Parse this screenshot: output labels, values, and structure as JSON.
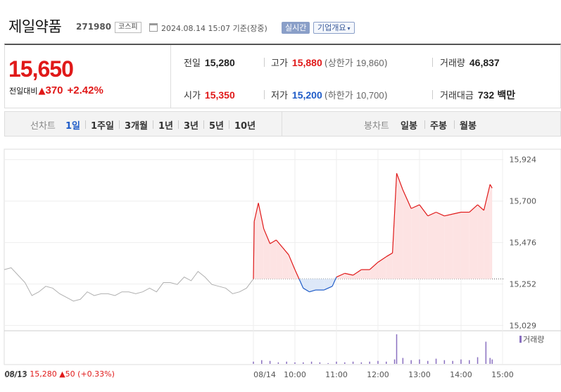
{
  "header": {
    "name": "제일약품",
    "code": "271980",
    "market": "코스피",
    "as_of": "2024.08.14 15:07 기준(장중)",
    "realtime": "실시간",
    "overview": "기업개요",
    "overview_caret": "▾"
  },
  "summary": {
    "price": "15,650",
    "change_label": "전일대비",
    "up_symbol": "▲",
    "change": "370",
    "change_pct": "+2.42%",
    "prev_label": "전일",
    "prev": "15,280",
    "high_label": "고가",
    "high": "15,880",
    "upper_limit_label": "(상한가",
    "upper_limit": "19,860",
    "upper_close": ")",
    "volume_label": "거래량",
    "volume": "46,837",
    "open_label": "시가",
    "open": "15,350",
    "low_label": "저가",
    "low": "15,200",
    "lower_limit_label": "(하한가",
    "lower_limit": "10,700",
    "lower_close": ")",
    "amount_label": "거래대금",
    "amount": "732",
    "amount_unit": "백만"
  },
  "tabs": {
    "line_label": "선차트",
    "line_periods": [
      "1일",
      "1주일",
      "3개월",
      "1년",
      "3년",
      "5년",
      "10년"
    ],
    "active": "1일",
    "candle_label": "봉차트",
    "candle_periods": [
      "일봉",
      "주봉",
      "월봉"
    ]
  },
  "prev_day_info": {
    "date": "08/13",
    "close": "15,280",
    "up_symbol": "▲",
    "change": "50",
    "pct": "(+0.33%)"
  },
  "colors": {
    "up": "#e01919",
    "down": "#1f5cc8",
    "fill_up": "#fde3e3",
    "fill_down": "#dde8f8",
    "prev_line": "#b0b0b0",
    "volume": "#8a70c0"
  },
  "chart_data": {
    "type": "line",
    "title": "",
    "xlabel": "",
    "ylabel": "",
    "baseline": 15280,
    "y_ticks": [
      15924,
      15700,
      15476,
      15252,
      15029
    ],
    "ylim": [
      15000,
      15980
    ],
    "x_ticks": [
      "08/14",
      "10:00",
      "11:00",
      "12:00",
      "13:00",
      "14:00",
      "15:00"
    ],
    "previous_day": {
      "date": "08/13",
      "points": [
        [
          0,
          15330
        ],
        [
          0.2,
          15340
        ],
        [
          0.4,
          15300
        ],
        [
          0.6,
          15260
        ],
        [
          0.8,
          15190
        ],
        [
          1,
          15210
        ],
        [
          1.2,
          15240
        ],
        [
          1.4,
          15230
        ],
        [
          1.6,
          15200
        ],
        [
          1.8,
          15180
        ],
        [
          2,
          15160
        ],
        [
          2.2,
          15170
        ],
        [
          2.4,
          15210
        ],
        [
          2.6,
          15190
        ],
        [
          2.8,
          15200
        ],
        [
          3,
          15200
        ],
        [
          3.2,
          15190
        ],
        [
          3.4,
          15210
        ],
        [
          3.6,
          15210
        ],
        [
          3.8,
          15200
        ],
        [
          4,
          15210
        ],
        [
          4.2,
          15230
        ],
        [
          4.4,
          15210
        ],
        [
          4.6,
          15260
        ],
        [
          4.8,
          15260
        ],
        [
          5,
          15250
        ],
        [
          5.2,
          15290
        ],
        [
          5.4,
          15270
        ],
        [
          5.6,
          15320
        ],
        [
          5.8,
          15290
        ],
        [
          6,
          15250
        ],
        [
          6.2,
          15240
        ],
        [
          6.4,
          15230
        ],
        [
          6.6,
          15200
        ],
        [
          6.8,
          15210
        ],
        [
          7,
          15230
        ],
        [
          7.2,
          15280
        ]
      ]
    },
    "today": {
      "date": "08/14",
      "points": [
        [
          9.0,
          15280
        ],
        [
          9.02,
          15590
        ],
        [
          9.12,
          15690
        ],
        [
          9.25,
          15550
        ],
        [
          9.4,
          15470
        ],
        [
          9.55,
          15490
        ],
        [
          9.7,
          15450
        ],
        [
          9.85,
          15410
        ],
        [
          10.0,
          15330
        ],
        [
          10.1,
          15280
        ],
        [
          10.2,
          15230
        ],
        [
          10.35,
          15210
        ],
        [
          10.5,
          15220
        ],
        [
          10.7,
          15220
        ],
        [
          10.9,
          15240
        ],
        [
          11.0,
          15290
        ],
        [
          11.2,
          15310
        ],
        [
          11.4,
          15300
        ],
        [
          11.6,
          15330
        ],
        [
          11.8,
          15330
        ],
        [
          12.0,
          15370
        ],
        [
          12.2,
          15400
        ],
        [
          12.35,
          15420
        ],
        [
          12.45,
          15850
        ],
        [
          12.6,
          15760
        ],
        [
          12.8,
          15660
        ],
        [
          13.0,
          15680
        ],
        [
          13.2,
          15620
        ],
        [
          13.4,
          15640
        ],
        [
          13.6,
          15620
        ],
        [
          13.8,
          15630
        ],
        [
          14.0,
          15640
        ],
        [
          14.2,
          15640
        ],
        [
          14.4,
          15680
        ],
        [
          14.55,
          15650
        ],
        [
          14.7,
          15790
        ],
        [
          14.75,
          15770
        ]
      ]
    },
    "volume_label": "거래량",
    "volume": {
      "x": [
        9.0,
        9.2,
        9.4,
        9.6,
        9.8,
        10.0,
        10.2,
        10.4,
        10.6,
        10.8,
        11.0,
        11.2,
        11.4,
        11.6,
        11.8,
        12.0,
        12.2,
        12.4,
        12.45,
        12.6,
        12.8,
        13.0,
        13.2,
        13.4,
        13.6,
        13.8,
        14.0,
        14.2,
        14.4,
        14.6,
        14.7,
        14.75
      ],
      "values": [
        3,
        5,
        4,
        2,
        3,
        2,
        2,
        3,
        2,
        1,
        3,
        2,
        3,
        2,
        3,
        4,
        3,
        6,
        40,
        8,
        5,
        6,
        4,
        7,
        5,
        4,
        6,
        5,
        9,
        30,
        8,
        6
      ]
    }
  }
}
